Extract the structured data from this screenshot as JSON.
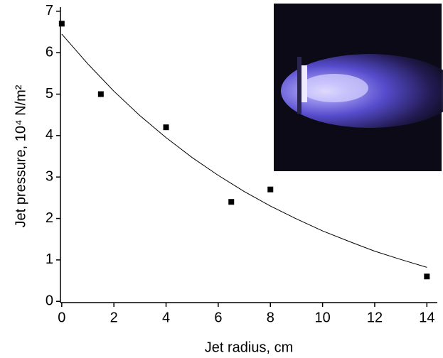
{
  "chart_data": {
    "type": "scatter",
    "x_label": "Jet radius, cm",
    "y_label": "Jet pressure, 10⁴ N/m²",
    "x": [
      0,
      1.5,
      4,
      6.5,
      8,
      14
    ],
    "values": [
      6.7,
      5.0,
      4.2,
      2.4,
      2.7,
      0.6
    ],
    "color": "#000000",
    "fit": {
      "x": [
        0,
        1,
        2,
        3,
        4,
        5,
        6,
        7,
        8,
        9,
        10,
        11,
        12,
        13,
        14
      ],
      "values": [
        6.45,
        5.73,
        5.07,
        4.48,
        3.95,
        3.47,
        3.04,
        2.65,
        2.3,
        1.99,
        1.7,
        1.45,
        1.21,
        1.01,
        0.82
      ]
    },
    "xlim": [
      -0.05,
      14.4
    ],
    "ylim": [
      -0.03,
      7.1
    ],
    "xticks": [
      0,
      2,
      4,
      6,
      8,
      10,
      12,
      14
    ],
    "yticks": [
      0,
      1,
      2,
      3,
      4,
      5,
      6,
      7
    ]
  }
}
